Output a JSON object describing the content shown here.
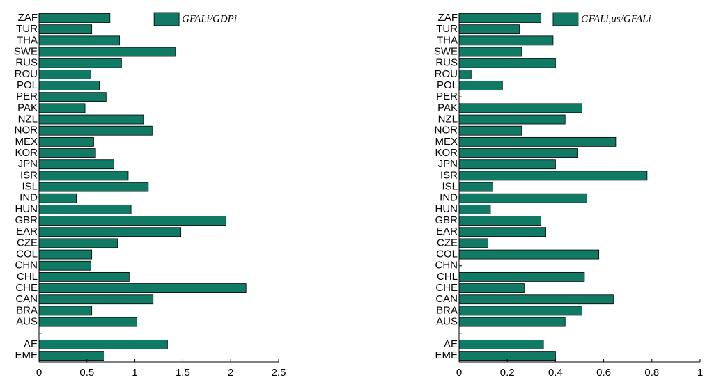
{
  "chart_data": [
    {
      "type": "bar",
      "orientation": "horizontal",
      "categories": [
        "ZAF",
        "TUR",
        "THA",
        "SWE",
        "RUS",
        "ROU",
        "POL",
        "PER",
        "PAK",
        "NZL",
        "NOR",
        "MEX",
        "KOR",
        "JPN",
        "ISR",
        "ISL",
        "IND",
        "HUN",
        "GBR",
        "EAR",
        "CZE",
        "COL",
        "CHN",
        "CHL",
        "CHE",
        "CAN",
        "BRA",
        "AUS",
        null,
        "AE",
        "EME"
      ],
      "series": [
        {
          "name": "GFALi/GDPi",
          "color": "#117a65",
          "values": [
            0.74,
            0.55,
            0.84,
            1.42,
            0.86,
            0.54,
            0.63,
            0.7,
            0.48,
            1.09,
            1.18,
            0.57,
            0.59,
            0.78,
            0.93,
            1.14,
            0.39,
            0.96,
            1.95,
            1.48,
            0.82,
            0.55,
            0.54,
            0.94,
            2.16,
            1.19,
            0.55,
            1.02,
            null,
            1.34,
            0.68
          ]
        }
      ],
      "xlim": [
        0,
        2.5
      ],
      "xticks": [
        0,
        0.5,
        1,
        1.5,
        2,
        2.5
      ],
      "legend": "upper right"
    },
    {
      "type": "bar",
      "orientation": "horizontal",
      "categories": [
        "ZAF",
        "TUR",
        "THA",
        "SWE",
        "RUS",
        "ROU",
        "POL",
        "PER",
        "PAK",
        "NZL",
        "NOR",
        "MEX",
        "KOR",
        "JPN",
        "ISR",
        "ISL",
        "IND",
        "HUN",
        "GBR",
        "EAR",
        "CZE",
        "COL",
        "CHN",
        "CHL",
        "CHE",
        "CAN",
        "BRA",
        "AUS",
        null,
        "AE",
        "EME"
      ],
      "series": [
        {
          "name": "GFALi,us/GFALi",
          "color": "#117a65",
          "values": [
            0.34,
            0.25,
            0.39,
            0.26,
            0.4,
            0.05,
            0.18,
            0,
            0.51,
            0.44,
            0.26,
            0.65,
            0.49,
            0.4,
            0.78,
            0.14,
            0.53,
            0.13,
            0.34,
            0.36,
            0.12,
            0.58,
            0,
            0.52,
            0.27,
            0.64,
            0.51,
            0.44,
            null,
            0.35,
            0.4
          ]
        }
      ],
      "xlim": [
        0,
        1
      ],
      "xticks": [
        0,
        0.2,
        0.4,
        0.6,
        0.8,
        1
      ],
      "legend": "upper right"
    }
  ]
}
